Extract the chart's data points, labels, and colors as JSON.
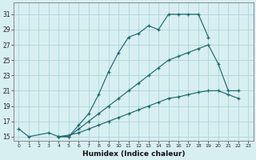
{
  "title": "",
  "xlabel": "Humidex (Indice chaleur)",
  "background_color": "#d8eff2",
  "grid_color": "#b0d8dc",
  "line_color": "#1a6b6b",
  "ylim": [
    14.5,
    32.5
  ],
  "xlim": [
    -0.5,
    23.5
  ],
  "yticks": [
    15,
    17,
    19,
    21,
    23,
    25,
    27,
    29,
    31
  ],
  "xticks": [
    0,
    1,
    2,
    3,
    4,
    5,
    6,
    7,
    8,
    9,
    10,
    11,
    12,
    13,
    14,
    15,
    16,
    17,
    18,
    19,
    20,
    21,
    22,
    23
  ],
  "series": [
    {
      "x": [
        0,
        1,
        3,
        4,
        5,
        6,
        7,
        8,
        9,
        10,
        11,
        12,
        13,
        14,
        15,
        16,
        17,
        18,
        19
      ],
      "y": [
        16,
        15,
        15.5,
        15,
        15,
        16.5,
        18,
        20.5,
        23.5,
        26,
        28,
        28.5,
        29.5,
        29,
        31,
        31,
        31,
        31,
        28
      ]
    },
    {
      "x": [
        4,
        5,
        6,
        7,
        8,
        9,
        10,
        11,
        12,
        13,
        14,
        15,
        16,
        17,
        18,
        19,
        20,
        21,
        22
      ],
      "y": [
        15,
        15,
        16,
        17,
        18,
        19,
        20,
        21,
        22,
        23,
        24,
        25,
        25.5,
        26,
        26.5,
        27,
        24.5,
        21,
        21
      ]
    },
    {
      "x": [
        4,
        5,
        6,
        7,
        8,
        9,
        10,
        11,
        12,
        13,
        14,
        15,
        16,
        17,
        18,
        19,
        20,
        21,
        22
      ],
      "y": [
        15,
        15.2,
        15.5,
        16,
        16.5,
        17,
        17.5,
        18,
        18.5,
        19,
        19.5,
        20,
        20.2,
        20.5,
        20.8,
        21,
        21,
        20.5,
        20
      ]
    }
  ]
}
